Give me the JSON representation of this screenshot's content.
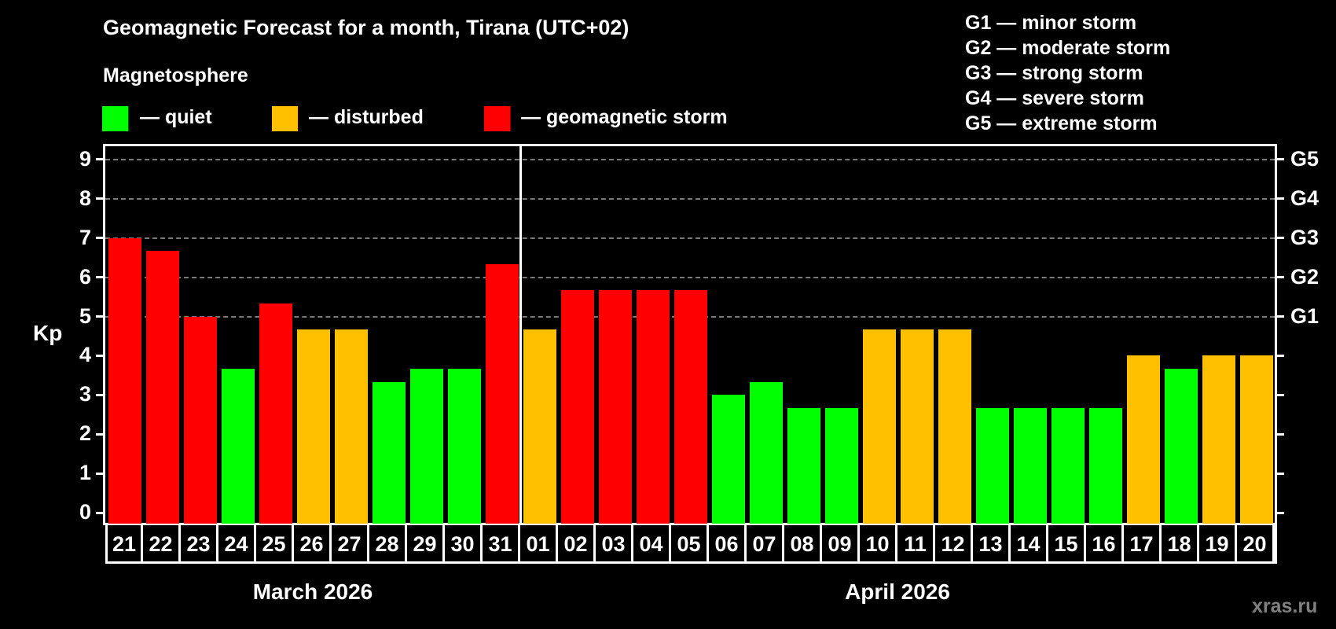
{
  "header": {
    "title": "Geomagnetic Forecast for a month, Tirana (UTC+02)",
    "subtitle": "Magnetosphere"
  },
  "legend": [
    {
      "label": "— quiet",
      "color": "#00ff00"
    },
    {
      "label": "— disturbed",
      "color": "#ffc000"
    },
    {
      "label": "— geomagnetic storm",
      "color": "#ff0000"
    }
  ],
  "storm_scale": [
    "G1 — minor storm",
    "G2 — moderate storm",
    "G3 — strong storm",
    "G4 — severe storm",
    "G5 — extreme storm"
  ],
  "axis": {
    "y_label": "Kp",
    "y_ticks": [
      "0",
      "1",
      "2",
      "3",
      "4",
      "5",
      "6",
      "7",
      "8",
      "9"
    ],
    "right_ticks": [
      {
        "value": 5,
        "label": "G1"
      },
      {
        "value": 6,
        "label": "G2"
      },
      {
        "value": 7,
        "label": "G3"
      },
      {
        "value": 8,
        "label": "G4"
      },
      {
        "value": 9,
        "label": "G5"
      }
    ]
  },
  "months": [
    {
      "label": "March 2026",
      "days": 11
    },
    {
      "label": "April 2026",
      "days": 20
    }
  ],
  "watermark": "xras.ru",
  "colors": {
    "quiet": "#00ff00",
    "disturbed": "#ffc000",
    "storm": "#ff0000",
    "grid": "#7a7a7a",
    "background": "#000000"
  },
  "chart_data": {
    "type": "bar",
    "title": "Geomagnetic Forecast for a month, Tirana (UTC+02)",
    "xlabel": "",
    "ylabel": "Kp",
    "ylim": [
      0,
      9
    ],
    "grid": true,
    "categories": [
      "21",
      "22",
      "23",
      "24",
      "25",
      "26",
      "27",
      "28",
      "29",
      "30",
      "31",
      "01",
      "02",
      "03",
      "04",
      "05",
      "06",
      "07",
      "08",
      "09",
      "10",
      "11",
      "12",
      "13",
      "14",
      "15",
      "16",
      "17",
      "18",
      "19",
      "20"
    ],
    "category_groups": [
      {
        "label": "March 2026",
        "range": [
          "21",
          "31"
        ]
      },
      {
        "label": "April 2026",
        "range": [
          "01",
          "20"
        ]
      }
    ],
    "values": [
      7.0,
      6.67,
      5.0,
      3.67,
      5.33,
      4.67,
      4.67,
      3.33,
      3.67,
      3.67,
      6.33,
      4.67,
      5.67,
      5.67,
      5.67,
      5.67,
      3.0,
      3.33,
      2.67,
      2.67,
      4.67,
      4.67,
      4.67,
      2.67,
      2.67,
      2.67,
      2.67,
      4.0,
      3.67,
      4.0,
      4.0
    ],
    "status": [
      "storm",
      "storm",
      "storm",
      "quiet",
      "storm",
      "disturbed",
      "disturbed",
      "quiet",
      "quiet",
      "quiet",
      "storm",
      "disturbed",
      "storm",
      "storm",
      "storm",
      "storm",
      "quiet",
      "quiet",
      "quiet",
      "quiet",
      "disturbed",
      "disturbed",
      "disturbed",
      "quiet",
      "quiet",
      "quiet",
      "quiet",
      "disturbed",
      "quiet",
      "disturbed",
      "disturbed"
    ],
    "legend": [
      "quiet",
      "disturbed",
      "geomagnetic storm"
    ],
    "secondary_axis": {
      "G1": 5,
      "G2": 6,
      "G3": 7,
      "G4": 8,
      "G5": 9
    }
  }
}
